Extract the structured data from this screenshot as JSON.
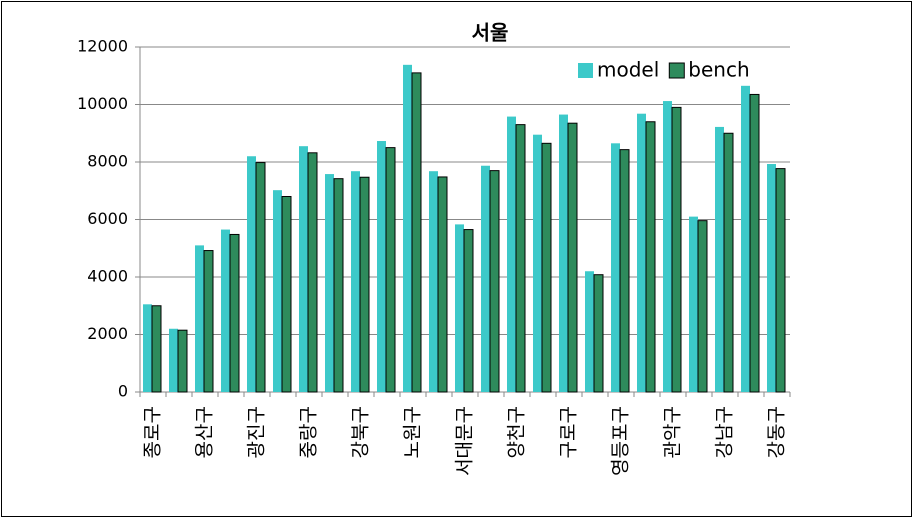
{
  "chart_data": {
    "type": "bar",
    "title": "서울",
    "categories": [
      "종로구",
      null,
      "용산구",
      null,
      "광진구",
      null,
      "중랑구",
      null,
      "강북구",
      null,
      "노원구",
      null,
      "서대문구",
      null,
      "양천구",
      null,
      "구로구",
      null,
      "영등포구",
      null,
      "관악구",
      null,
      "강남구",
      null,
      "강동구"
    ],
    "series": [
      {
        "name": "model",
        "color": "#3cc9c9",
        "values": [
          3050,
          2200,
          5100,
          5650,
          8200,
          7020,
          8550,
          7580,
          7680,
          8730,
          11380,
          7680,
          5830,
          7870,
          9580,
          8950,
          9650,
          4200,
          8650,
          9680,
          10120,
          6100,
          9220,
          10650,
          7930
        ]
      },
      {
        "name": "bench",
        "color": "#2e8b5c",
        "values": [
          3000,
          2150,
          4920,
          5480,
          7980,
          6800,
          8320,
          7420,
          7470,
          8500,
          11100,
          7480,
          5650,
          7700,
          9300,
          8650,
          9350,
          4080,
          8430,
          9400,
          9900,
          5960,
          9000,
          10350,
          7770
        ]
      }
    ],
    "ylim": [
      0,
      12000
    ],
    "yticks": [
      0,
      2000,
      4000,
      6000,
      8000,
      10000,
      12000
    ],
    "grid": true,
    "legend": "top-right"
  }
}
